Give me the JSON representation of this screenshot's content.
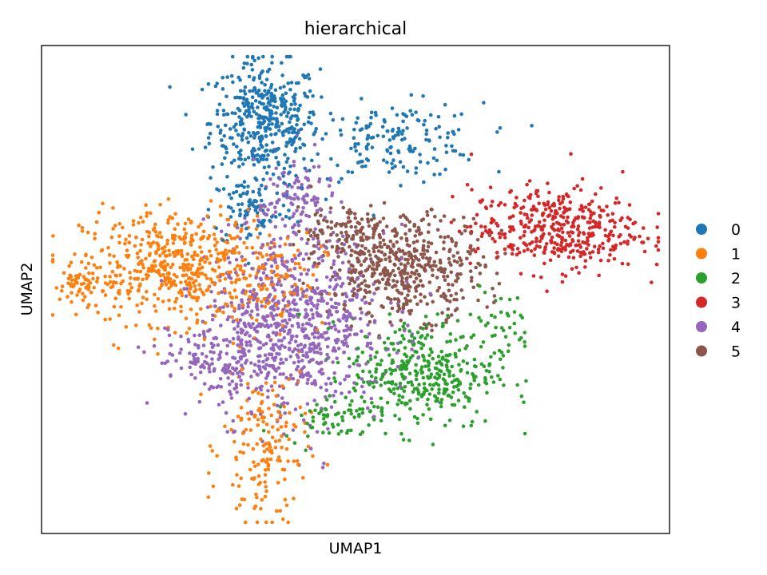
{
  "chart_data": {
    "type": "scatter",
    "title": "hierarchical",
    "xlabel": "UMAP1",
    "ylabel": "UMAP2",
    "xlim": [
      0,
      100
    ],
    "ylim": [
      0,
      100
    ],
    "grid": false,
    "legend_placement": "right",
    "series": [
      {
        "name": "0",
        "color": "#1f77b4",
        "clusters": [
          {
            "cx": 35,
            "cy": 86,
            "sx": 4.5,
            "sy": 6.5,
            "n": 420
          },
          {
            "cx": 57,
            "cy": 82,
            "sx": 7,
            "sy": 4,
            "n": 160
          },
          {
            "cx": 33,
            "cy": 67,
            "sx": 3.5,
            "sy": 4,
            "n": 90
          }
        ]
      },
      {
        "name": "1",
        "color": "#ff7f0e",
        "clusters": [
          {
            "cx": 21,
            "cy": 55,
            "sx": 8,
            "sy": 6,
            "n": 520
          },
          {
            "cx": 6,
            "cy": 51,
            "sx": 3,
            "sy": 1.8,
            "n": 70
          },
          {
            "cx": 35,
            "cy": 16,
            "sx": 3.5,
            "sy": 9,
            "n": 170
          },
          {
            "cx": 37,
            "cy": 52,
            "sx": 4,
            "sy": 5,
            "n": 70
          }
        ]
      },
      {
        "name": "2",
        "color": "#2ca02c",
        "clusters": [
          {
            "cx": 61,
            "cy": 32,
            "sx": 6,
            "sy": 6,
            "n": 380
          },
          {
            "cx": 74,
            "cy": 42,
            "sx": 2.5,
            "sy": 4,
            "n": 40
          },
          {
            "cx": 46,
            "cy": 23,
            "sx": 4,
            "sy": 2.5,
            "n": 60
          }
        ]
      },
      {
        "name": "3",
        "color": "#d62728",
        "clusters": [
          {
            "cx": 83,
            "cy": 63,
            "sx": 7,
            "sy": 4.5,
            "n": 420
          }
        ]
      },
      {
        "name": "4",
        "color": "#9467bd",
        "clusters": [
          {
            "cx": 40,
            "cy": 43,
            "sx": 7.5,
            "sy": 10,
            "n": 780
          },
          {
            "cx": 29,
            "cy": 35,
            "sx": 6,
            "sy": 3.5,
            "n": 150
          },
          {
            "cx": 40,
            "cy": 70,
            "sx": 3,
            "sy": 5,
            "n": 100
          }
        ]
      },
      {
        "name": "5",
        "color": "#8c564b",
        "clusters": [
          {
            "cx": 58,
            "cy": 55,
            "sx": 6.5,
            "sy": 5.5,
            "n": 520
          },
          {
            "cx": 47,
            "cy": 63,
            "sx": 3.5,
            "sy": 3,
            "n": 80
          }
        ]
      }
    ]
  }
}
